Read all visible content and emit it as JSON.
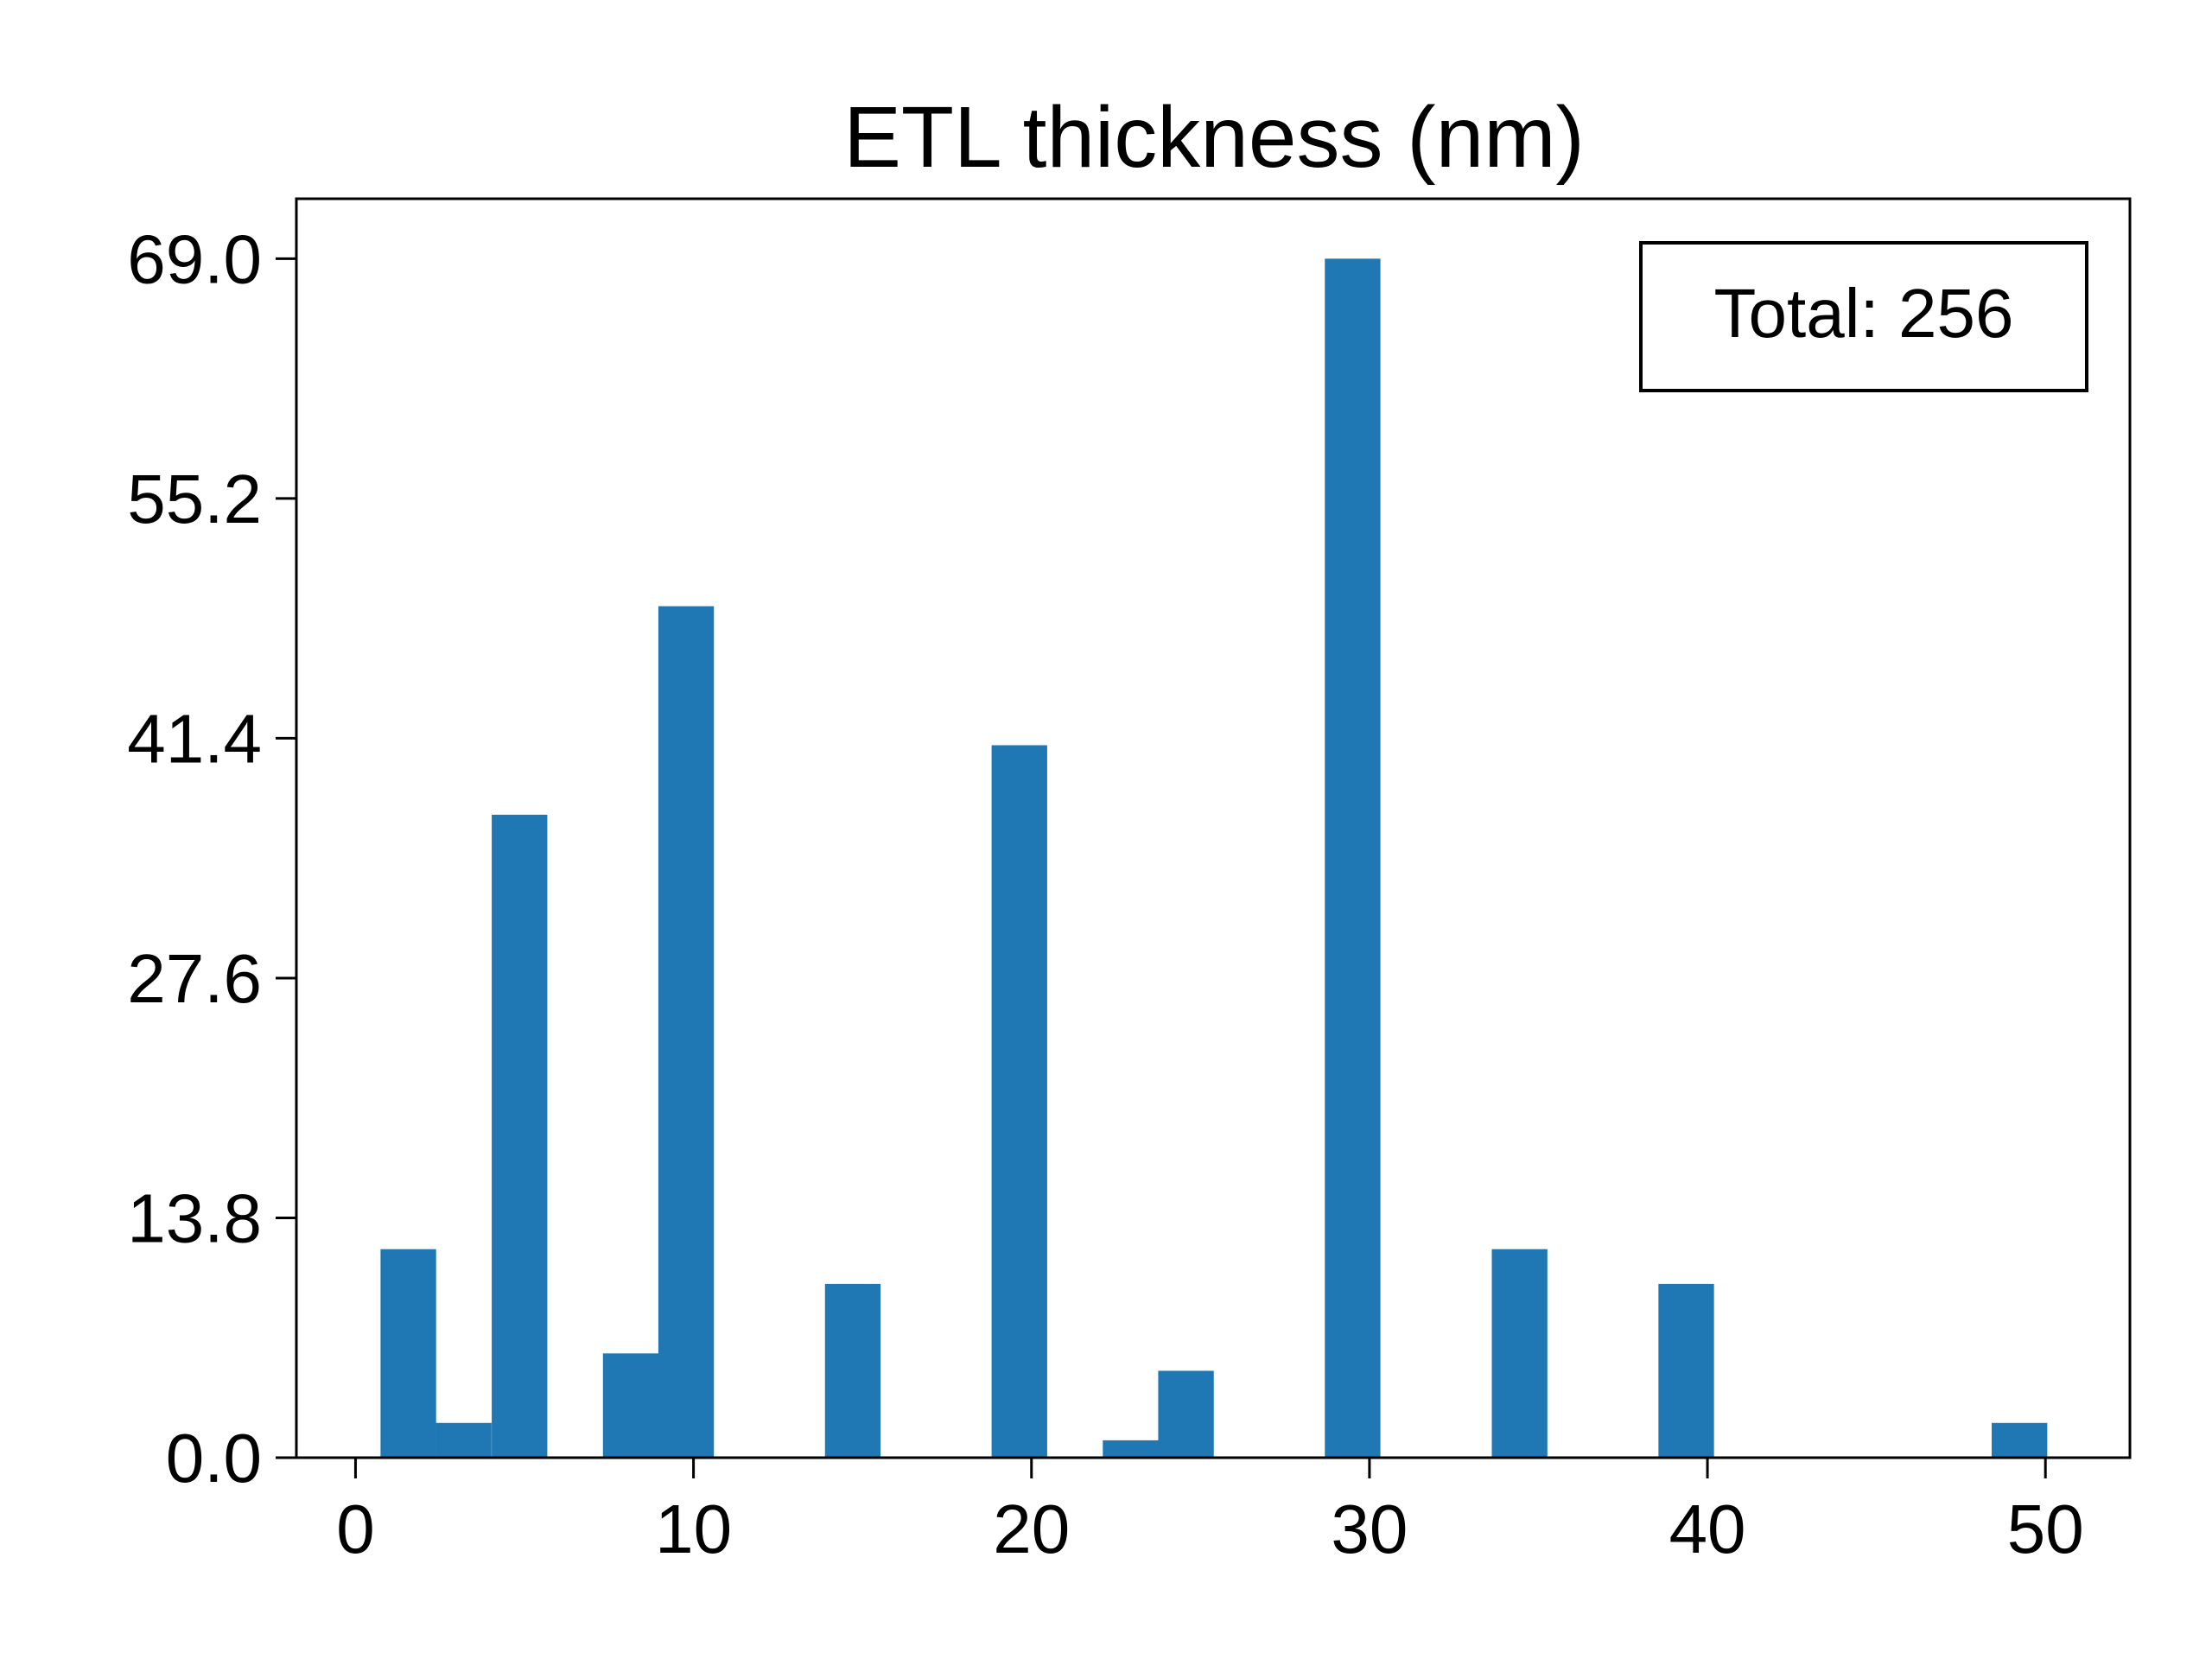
{
  "chart_data": {
    "type": "bar",
    "title": "ETL thickness (nm)",
    "xlabel": "",
    "ylabel": "",
    "xlim": [
      -1.75,
      52.5
    ],
    "ylim": [
      0,
      72.45
    ],
    "x_ticks": [
      "0",
      "10",
      "20",
      "30",
      "40",
      "50"
    ],
    "x_tick_values": [
      0,
      10,
      20,
      30,
      40,
      50
    ],
    "y_ticks": [
      "0.0",
      "13.8",
      "27.6",
      "41.4",
      "55.2",
      "69.0"
    ],
    "y_tick_values": [
      0,
      13.8,
      27.6,
      41.4,
      55.2,
      69.0
    ],
    "bin_width": 1.644,
    "bins": [
      {
        "x_left": 0.74,
        "value": 12
      },
      {
        "x_left": 2.38,
        "value": 2
      },
      {
        "x_left": 4.03,
        "value": 37
      },
      {
        "x_left": 7.32,
        "value": 6
      },
      {
        "x_left": 8.96,
        "value": 49
      },
      {
        "x_left": 13.89,
        "value": 10
      },
      {
        "x_left": 18.82,
        "value": 41
      },
      {
        "x_left": 22.11,
        "value": 1
      },
      {
        "x_left": 23.75,
        "value": 5
      },
      {
        "x_left": 28.68,
        "value": 69
      },
      {
        "x_left": 33.62,
        "value": 12
      },
      {
        "x_left": 38.55,
        "value": 10
      },
      {
        "x_left": 48.41,
        "value": 2
      }
    ],
    "bar_color": "#1f77b4",
    "grid": false,
    "legend": "none",
    "annotation": {
      "text": "Total: 256",
      "placement": "top-right"
    }
  }
}
